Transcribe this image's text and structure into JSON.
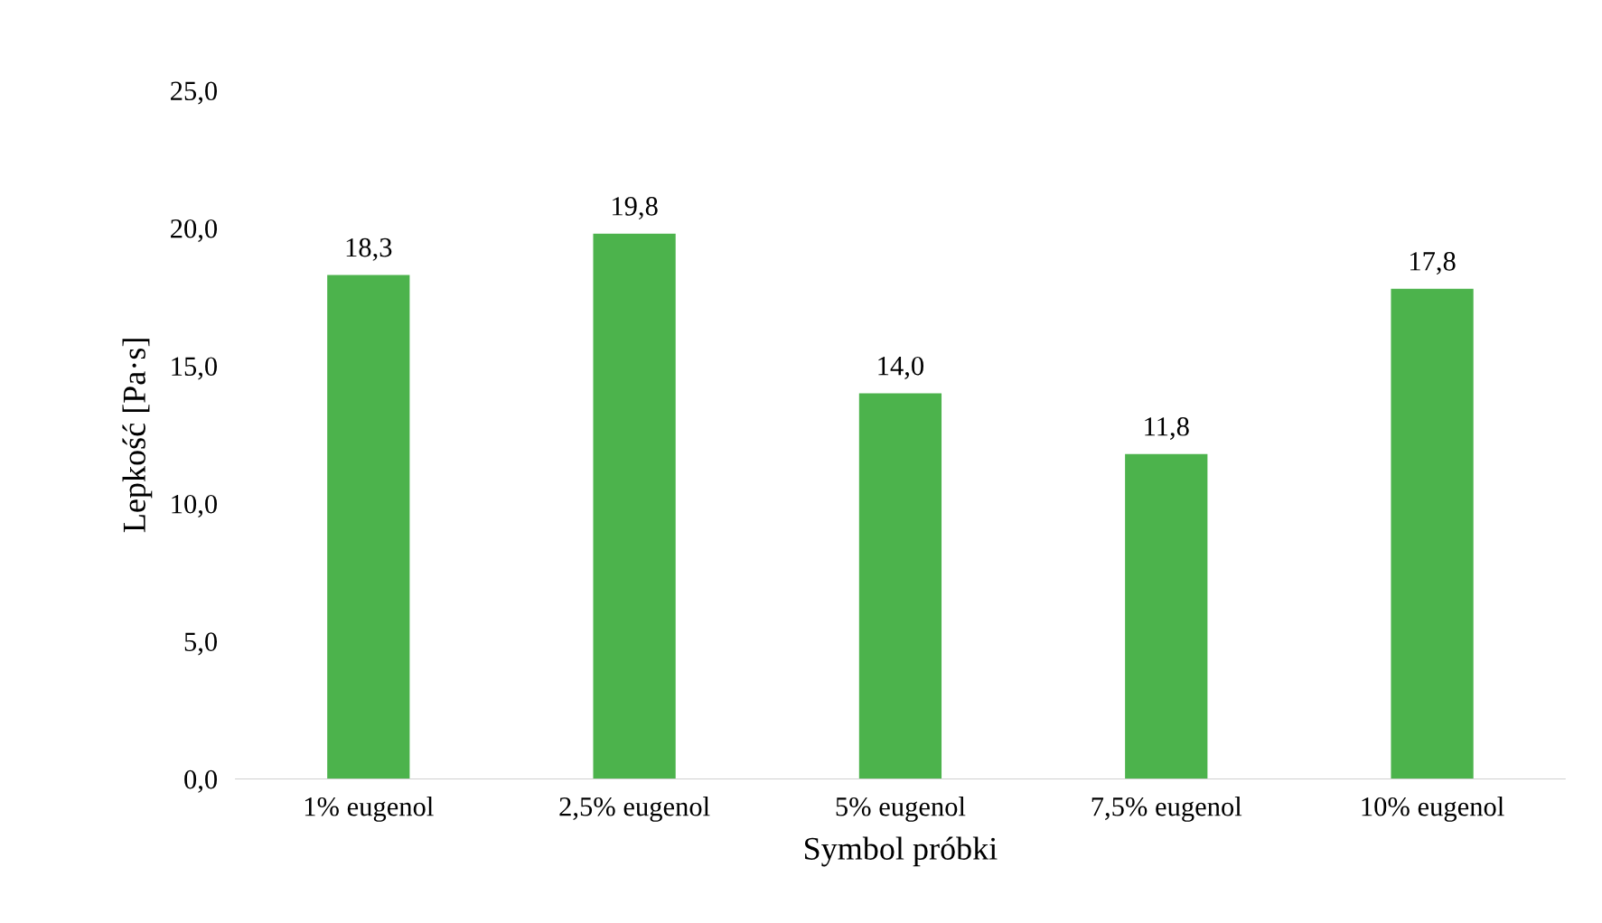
{
  "chart_data": {
    "type": "bar",
    "xlabel": "Symbol próbki",
    "ylabel": "Lepkość [Pa·s]",
    "categories": [
      "1% eugenol",
      "2,5% eugenol",
      "5% eugenol",
      "7,5% eugenol",
      "10% eugenol"
    ],
    "values": [
      18.3,
      19.8,
      14.0,
      11.8,
      17.8
    ],
    "value_labels": [
      "18,3",
      "19,8",
      "14,0",
      "11,8",
      "17,8"
    ],
    "color": "#4cb34c",
    "ylim": [
      0,
      25
    ],
    "yticks": [
      {
        "value": 0,
        "label": "0,0"
      },
      {
        "value": 5,
        "label": "5,0"
      },
      {
        "value": 10,
        "label": "10,0"
      },
      {
        "value": 15,
        "label": "15,0"
      },
      {
        "value": 20,
        "label": "20,0"
      },
      {
        "value": 25,
        "label": "25,0"
      }
    ],
    "grid": false,
    "legend": false
  }
}
